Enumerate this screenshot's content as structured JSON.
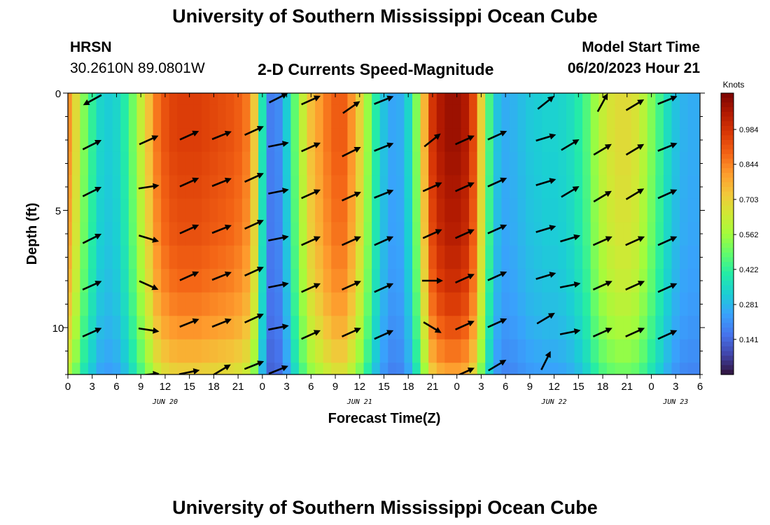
{
  "header": {
    "title": "University of Southern Mississippi Ocean Cube",
    "station": "HRSN",
    "coords": "30.2610N  89.0801W",
    "plot_title": "2-D Currents Speed-Magnitude",
    "model_label": "Model Start Time",
    "model_time": "06/20/2023 Hour 21"
  },
  "footer": {
    "title": "University of Southern Mississippi Ocean Cube"
  },
  "colors": {
    "arrow": "#000000",
    "colormap": [
      "#30123b",
      "#4145ab",
      "#4675ed",
      "#39a2fc",
      "#1bcfd4",
      "#24eca6",
      "#61fc6c",
      "#a4fc3b",
      "#d1e834",
      "#f3c63a",
      "#fe9b2d",
      "#f36315",
      "#d93806",
      "#b11901",
      "#7a0402"
    ]
  },
  "chart_data": {
    "type": "heatmap",
    "title": "2-D Currents Speed-Magnitude",
    "xlabel": "Forecast Time(Z)",
    "ylabel": "Depth (ft)",
    "x_unit": "hours since 2023-06-20 00Z",
    "xlim": [
      0,
      78
    ],
    "ylim": [
      0,
      12
    ],
    "y_inverted": true,
    "x_ticks": [
      0,
      3,
      6,
      9,
      12,
      15,
      18,
      21,
      24,
      27,
      30,
      33,
      36,
      39,
      42,
      45,
      48,
      51,
      54,
      57,
      60,
      63,
      66,
      69,
      72,
      75,
      78
    ],
    "x_tick_labels": [
      "0",
      "3",
      "6",
      "9",
      "12",
      "15",
      "18",
      "21",
      "0",
      "3",
      "6",
      "9",
      "12",
      "15",
      "18",
      "21",
      "0",
      "3",
      "6",
      "9",
      "12",
      "15",
      "18",
      "21",
      "0",
      "3",
      "6"
    ],
    "y_ticks": [
      0,
      5,
      10
    ],
    "y_tick_labels": [
      "0",
      "5",
      "10"
    ],
    "date_labels": [
      {
        "x": 12,
        "label": "JUN 20"
      },
      {
        "x": 36,
        "label": "JUN 21"
      },
      {
        "x": 60,
        "label": "JUN 22"
      },
      {
        "x": 75,
        "label": "JUN 23"
      }
    ],
    "colorbar": {
      "title": "Knots",
      "vmin": 0,
      "vmax": 1.13,
      "ticks": [
        0.141,
        0.281,
        0.422,
        0.562,
        0.703,
        0.844,
        0.984
      ]
    },
    "speed_profile": {
      "hours": [
        0,
        1,
        2,
        3,
        4,
        5,
        6,
        7,
        8,
        9,
        10,
        11,
        12,
        13,
        14,
        15,
        16,
        17,
        18,
        19,
        20,
        21,
        22,
        23,
        24,
        25,
        26,
        27,
        28,
        29,
        30,
        31,
        32,
        33,
        34,
        35,
        36,
        37,
        38,
        39,
        40,
        41,
        42,
        43,
        44,
        45,
        46,
        47,
        48,
        49,
        50,
        51,
        52,
        53,
        54,
        55,
        56,
        57,
        58,
        59,
        60,
        61,
        62,
        63,
        64,
        65,
        66,
        67,
        68,
        69,
        70,
        71,
        72,
        73,
        74,
        75,
        76,
        77,
        78
      ],
      "surface_knots": [
        0.82,
        0.68,
        0.52,
        0.42,
        0.34,
        0.32,
        0.34,
        0.4,
        0.5,
        0.62,
        0.74,
        0.86,
        0.92,
        0.95,
        0.96,
        0.96,
        0.96,
        0.95,
        0.94,
        0.93,
        0.92,
        0.9,
        0.86,
        0.72,
        0.38,
        0.18,
        0.2,
        0.32,
        0.48,
        0.62,
        0.74,
        0.8,
        0.86,
        0.9,
        0.9,
        0.82,
        0.7,
        0.55,
        0.4,
        0.3,
        0.25,
        0.26,
        0.34,
        0.52,
        0.76,
        0.98,
        1.05,
        1.08,
        1.08,
        1.05,
        0.94,
        0.7,
        0.45,
        0.3,
        0.26,
        0.27,
        0.29,
        0.31,
        0.32,
        0.33,
        0.33,
        0.34,
        0.36,
        0.4,
        0.46,
        0.55,
        0.62,
        0.66,
        0.68,
        0.68,
        0.66,
        0.6,
        0.52,
        0.44,
        0.36,
        0.3,
        0.27,
        0.26,
        0.26
      ],
      "depth_ft": [
        0,
        1,
        2,
        3,
        4,
        5,
        6,
        7,
        8,
        9,
        10,
        11,
        12
      ],
      "depth_factor": [
        1.0,
        1.0,
        1.0,
        0.99,
        0.98,
        0.97,
        0.96,
        0.94,
        0.92,
        0.89,
        0.85,
        0.8,
        0.74
      ]
    },
    "vectors": [
      {
        "t": 3,
        "d": 0.3,
        "dx": -1,
        "dy": 0.55
      },
      {
        "t": 3,
        "d": 2.2,
        "dx": 1,
        "dy": -0.5
      },
      {
        "t": 3,
        "d": 4.2,
        "dx": 1,
        "dy": -0.5
      },
      {
        "t": 3,
        "d": 6.2,
        "dx": 1,
        "dy": -0.5
      },
      {
        "t": 3,
        "d": 8.2,
        "dx": 1,
        "dy": -0.45
      },
      {
        "t": 3,
        "d": 10.2,
        "dx": 1,
        "dy": -0.45
      },
      {
        "t": 10,
        "d": 2.0,
        "dx": 1,
        "dy": -0.45
      },
      {
        "t": 10,
        "d": 4.0,
        "dx": 1,
        "dy": -0.15
      },
      {
        "t": 10,
        "d": 6.2,
        "dx": 1,
        "dy": 0.3
      },
      {
        "t": 10,
        "d": 8.2,
        "dx": 1,
        "dy": 0.45
      },
      {
        "t": 10,
        "d": 10.1,
        "dx": 1,
        "dy": 0.15
      },
      {
        "t": 10,
        "d": 12.0,
        "dx": 1,
        "dy": -0.1
      },
      {
        "t": 15,
        "d": 1.8,
        "dx": 1,
        "dy": -0.45
      },
      {
        "t": 15,
        "d": 3.8,
        "dx": 1,
        "dy": -0.45
      },
      {
        "t": 15,
        "d": 5.8,
        "dx": 1,
        "dy": -0.45
      },
      {
        "t": 15,
        "d": 7.8,
        "dx": 1,
        "dy": -0.45
      },
      {
        "t": 15,
        "d": 9.8,
        "dx": 1,
        "dy": -0.4
      },
      {
        "t": 15,
        "d": 11.9,
        "dx": 1,
        "dy": -0.2
      },
      {
        "t": 19,
        "d": 1.8,
        "dx": 1,
        "dy": -0.4
      },
      {
        "t": 19,
        "d": 3.8,
        "dx": 1,
        "dy": -0.4
      },
      {
        "t": 19,
        "d": 5.8,
        "dx": 1,
        "dy": -0.4
      },
      {
        "t": 19,
        "d": 7.8,
        "dx": 1,
        "dy": -0.4
      },
      {
        "t": 19,
        "d": 9.8,
        "dx": 1,
        "dy": -0.4
      },
      {
        "t": 19,
        "d": 11.8,
        "dx": 1,
        "dy": -0.6
      },
      {
        "t": 23,
        "d": 1.6,
        "dx": 1,
        "dy": -0.45
      },
      {
        "t": 23,
        "d": 3.6,
        "dx": 1,
        "dy": -0.45
      },
      {
        "t": 23,
        "d": 5.6,
        "dx": 1,
        "dy": -0.45
      },
      {
        "t": 23,
        "d": 7.6,
        "dx": 1,
        "dy": -0.45
      },
      {
        "t": 23,
        "d": 9.6,
        "dx": 1,
        "dy": -0.45
      },
      {
        "t": 23,
        "d": 11.6,
        "dx": 1,
        "dy": -0.4
      },
      {
        "t": 26,
        "d": 0.2,
        "dx": 1,
        "dy": -0.5
      },
      {
        "t": 26,
        "d": 2.2,
        "dx": 1,
        "dy": -0.2
      },
      {
        "t": 26,
        "d": 4.2,
        "dx": 1,
        "dy": -0.2
      },
      {
        "t": 26,
        "d": 6.2,
        "dx": 1,
        "dy": -0.2
      },
      {
        "t": 26,
        "d": 8.2,
        "dx": 1,
        "dy": -0.2
      },
      {
        "t": 26,
        "d": 10.0,
        "dx": 1,
        "dy": -0.2
      },
      {
        "t": 26,
        "d": 11.8,
        "dx": 1,
        "dy": -0.4
      },
      {
        "t": 30,
        "d": 0.3,
        "dx": 1,
        "dy": -0.45
      },
      {
        "t": 30,
        "d": 2.3,
        "dx": 1,
        "dy": -0.45
      },
      {
        "t": 30,
        "d": 4.3,
        "dx": 1,
        "dy": -0.45
      },
      {
        "t": 30,
        "d": 6.3,
        "dx": 1,
        "dy": -0.45
      },
      {
        "t": 30,
        "d": 8.3,
        "dx": 1,
        "dy": -0.45
      },
      {
        "t": 30,
        "d": 10.3,
        "dx": 1,
        "dy": -0.45
      },
      {
        "t": 35,
        "d": 0.6,
        "dx": 1,
        "dy": -0.7
      },
      {
        "t": 35,
        "d": 2.5,
        "dx": 1,
        "dy": -0.5
      },
      {
        "t": 35,
        "d": 4.4,
        "dx": 1,
        "dy": -0.45
      },
      {
        "t": 35,
        "d": 6.3,
        "dx": 1,
        "dy": -0.45
      },
      {
        "t": 35,
        "d": 8.2,
        "dx": 1,
        "dy": -0.45
      },
      {
        "t": 35,
        "d": 10.2,
        "dx": 1,
        "dy": -0.45
      },
      {
        "t": 39,
        "d": 0.3,
        "dx": 1,
        "dy": -0.4
      },
      {
        "t": 39,
        "d": 2.3,
        "dx": 1,
        "dy": -0.4
      },
      {
        "t": 39,
        "d": 4.3,
        "dx": 1,
        "dy": -0.4
      },
      {
        "t": 39,
        "d": 6.3,
        "dx": 1,
        "dy": -0.45
      },
      {
        "t": 39,
        "d": 8.3,
        "dx": 1,
        "dy": -0.45
      },
      {
        "t": 39,
        "d": 10.3,
        "dx": 1,
        "dy": -0.45
      },
      {
        "t": 45,
        "d": 2.0,
        "dx": 1,
        "dy": -0.8
      },
      {
        "t": 45,
        "d": 4.0,
        "dx": 1,
        "dy": -0.45
      },
      {
        "t": 45,
        "d": 6.0,
        "dx": 1,
        "dy": -0.45
      },
      {
        "t": 45,
        "d": 8.0,
        "dx": 1,
        "dy": 0.0
      },
      {
        "t": 45,
        "d": 10.0,
        "dx": 1,
        "dy": 0.6
      },
      {
        "t": 49,
        "d": 2.0,
        "dx": 1,
        "dy": -0.45
      },
      {
        "t": 49,
        "d": 4.0,
        "dx": 1,
        "dy": -0.45
      },
      {
        "t": 49,
        "d": 6.0,
        "dx": 1,
        "dy": -0.45
      },
      {
        "t": 49,
        "d": 7.9,
        "dx": 1,
        "dy": -0.45
      },
      {
        "t": 49,
        "d": 9.9,
        "dx": 1,
        "dy": -0.45
      },
      {
        "t": 49,
        "d": 11.9,
        "dx": 1,
        "dy": -0.45
      },
      {
        "t": 53,
        "d": 1.8,
        "dx": 1,
        "dy": -0.45
      },
      {
        "t": 53,
        "d": 3.8,
        "dx": 1,
        "dy": -0.45
      },
      {
        "t": 53,
        "d": 5.8,
        "dx": 1,
        "dy": -0.45
      },
      {
        "t": 53,
        "d": 7.8,
        "dx": 1,
        "dy": -0.45
      },
      {
        "t": 53,
        "d": 9.8,
        "dx": 1,
        "dy": -0.45
      },
      {
        "t": 53,
        "d": 11.6,
        "dx": 1,
        "dy": -0.6
      },
      {
        "t": 59,
        "d": 0.4,
        "dx": 1,
        "dy": -0.8
      },
      {
        "t": 59,
        "d": 1.9,
        "dx": 1,
        "dy": -0.3
      },
      {
        "t": 59,
        "d": 3.8,
        "dx": 1,
        "dy": -0.3
      },
      {
        "t": 59,
        "d": 5.8,
        "dx": 1,
        "dy": -0.3
      },
      {
        "t": 59,
        "d": 7.8,
        "dx": 1,
        "dy": -0.3
      },
      {
        "t": 59,
        "d": 9.6,
        "dx": 1,
        "dy": -0.6
      },
      {
        "t": 59,
        "d": 11.4,
        "dx": 0.5,
        "dy": -1
      },
      {
        "t": 62,
        "d": 2.2,
        "dx": 1,
        "dy": -0.6
      },
      {
        "t": 62,
        "d": 4.2,
        "dx": 1,
        "dy": -0.6
      },
      {
        "t": 62,
        "d": 6.2,
        "dx": 1,
        "dy": -0.3
      },
      {
        "t": 62,
        "d": 8.2,
        "dx": 1,
        "dy": -0.2
      },
      {
        "t": 62,
        "d": 10.2,
        "dx": 1,
        "dy": -0.2
      },
      {
        "t": 66,
        "d": 0.4,
        "dx": 0.55,
        "dy": -1
      },
      {
        "t": 66,
        "d": 2.4,
        "dx": 1,
        "dy": -0.6
      },
      {
        "t": 66,
        "d": 4.4,
        "dx": 1,
        "dy": -0.6
      },
      {
        "t": 66,
        "d": 6.3,
        "dx": 1,
        "dy": -0.45
      },
      {
        "t": 66,
        "d": 8.2,
        "dx": 1,
        "dy": -0.45
      },
      {
        "t": 66,
        "d": 10.2,
        "dx": 1,
        "dy": -0.45
      },
      {
        "t": 70,
        "d": 0.5,
        "dx": 1,
        "dy": -0.6
      },
      {
        "t": 70,
        "d": 2.4,
        "dx": 1,
        "dy": -0.6
      },
      {
        "t": 70,
        "d": 4.3,
        "dx": 1,
        "dy": -0.6
      },
      {
        "t": 70,
        "d": 6.3,
        "dx": 1,
        "dy": -0.45
      },
      {
        "t": 70,
        "d": 8.2,
        "dx": 1,
        "dy": -0.45
      },
      {
        "t": 70,
        "d": 10.2,
        "dx": 1,
        "dy": -0.45
      },
      {
        "t": 74,
        "d": 0.3,
        "dx": 1,
        "dy": -0.4
      },
      {
        "t": 74,
        "d": 2.3,
        "dx": 1,
        "dy": -0.4
      },
      {
        "t": 74,
        "d": 4.3,
        "dx": 1,
        "dy": -0.45
      },
      {
        "t": 74,
        "d": 6.3,
        "dx": 1,
        "dy": -0.45
      },
      {
        "t": 74,
        "d": 8.3,
        "dx": 1,
        "dy": -0.45
      },
      {
        "t": 74,
        "d": 10.3,
        "dx": 1,
        "dy": -0.45
      }
    ]
  }
}
